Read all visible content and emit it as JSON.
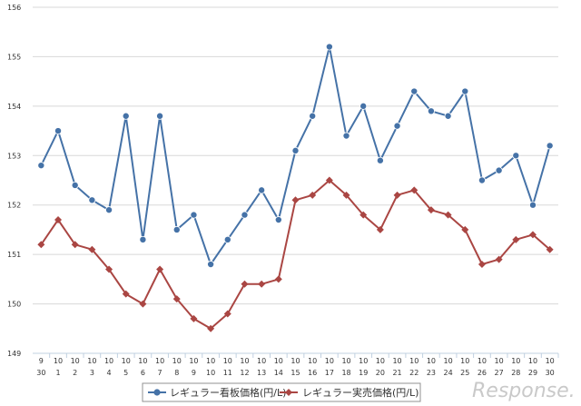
{
  "chart_data": {
    "type": "line",
    "ylim": [
      149,
      156
    ],
    "yticks": [
      "149",
      "150",
      "151",
      "152",
      "153",
      "154",
      "155",
      "156"
    ],
    "grid": true,
    "legend_position": "bottom",
    "categories": [
      [
        "9",
        "30"
      ],
      [
        "10",
        "1"
      ],
      [
        "10",
        "2"
      ],
      [
        "10",
        "3"
      ],
      [
        "10",
        "4"
      ],
      [
        "10",
        "5"
      ],
      [
        "10",
        "6"
      ],
      [
        "10",
        "7"
      ],
      [
        "10",
        "8"
      ],
      [
        "10",
        "9"
      ],
      [
        "10",
        "10"
      ],
      [
        "10",
        "11"
      ],
      [
        "10",
        "12"
      ],
      [
        "10",
        "13"
      ],
      [
        "10",
        "14"
      ],
      [
        "10",
        "15"
      ],
      [
        "10",
        "16"
      ],
      [
        "10",
        "17"
      ],
      [
        "10",
        "18"
      ],
      [
        "10",
        "19"
      ],
      [
        "10",
        "20"
      ],
      [
        "10",
        "21"
      ],
      [
        "10",
        "22"
      ],
      [
        "10",
        "23"
      ],
      [
        "10",
        "24"
      ],
      [
        "10",
        "25"
      ],
      [
        "10",
        "26"
      ],
      [
        "10",
        "27"
      ],
      [
        "10",
        "28"
      ],
      [
        "10",
        "29"
      ],
      [
        "10",
        "30"
      ]
    ],
    "series": [
      {
        "name": "レギュラー看板価格(円/L)",
        "color": "#4572a7",
        "marker": "circle",
        "values": [
          152.8,
          153.5,
          152.4,
          152.1,
          151.9,
          153.8,
          151.3,
          153.8,
          151.5,
          151.8,
          150.8,
          151.3,
          151.8,
          152.3,
          151.7,
          153.1,
          153.8,
          155.2,
          153.4,
          154.0,
          152.9,
          153.6,
          154.3,
          153.9,
          153.8,
          154.3,
          152.5,
          152.7,
          153.0,
          152.0,
          153.2
        ]
      },
      {
        "name": "レギュラー実売価格(円/L)",
        "color": "#aa4643",
        "marker": "diamond",
        "values": [
          151.2,
          151.7,
          151.2,
          151.1,
          150.7,
          150.2,
          150.0,
          150.7,
          150.1,
          149.7,
          149.5,
          149.8,
          150.4,
          150.4,
          150.5,
          152.1,
          152.2,
          152.5,
          152.2,
          151.8,
          151.5,
          152.2,
          152.3,
          151.9,
          151.8,
          151.5,
          150.8,
          150.9,
          151.3,
          151.4,
          151.1
        ]
      }
    ]
  },
  "watermark": "Response."
}
